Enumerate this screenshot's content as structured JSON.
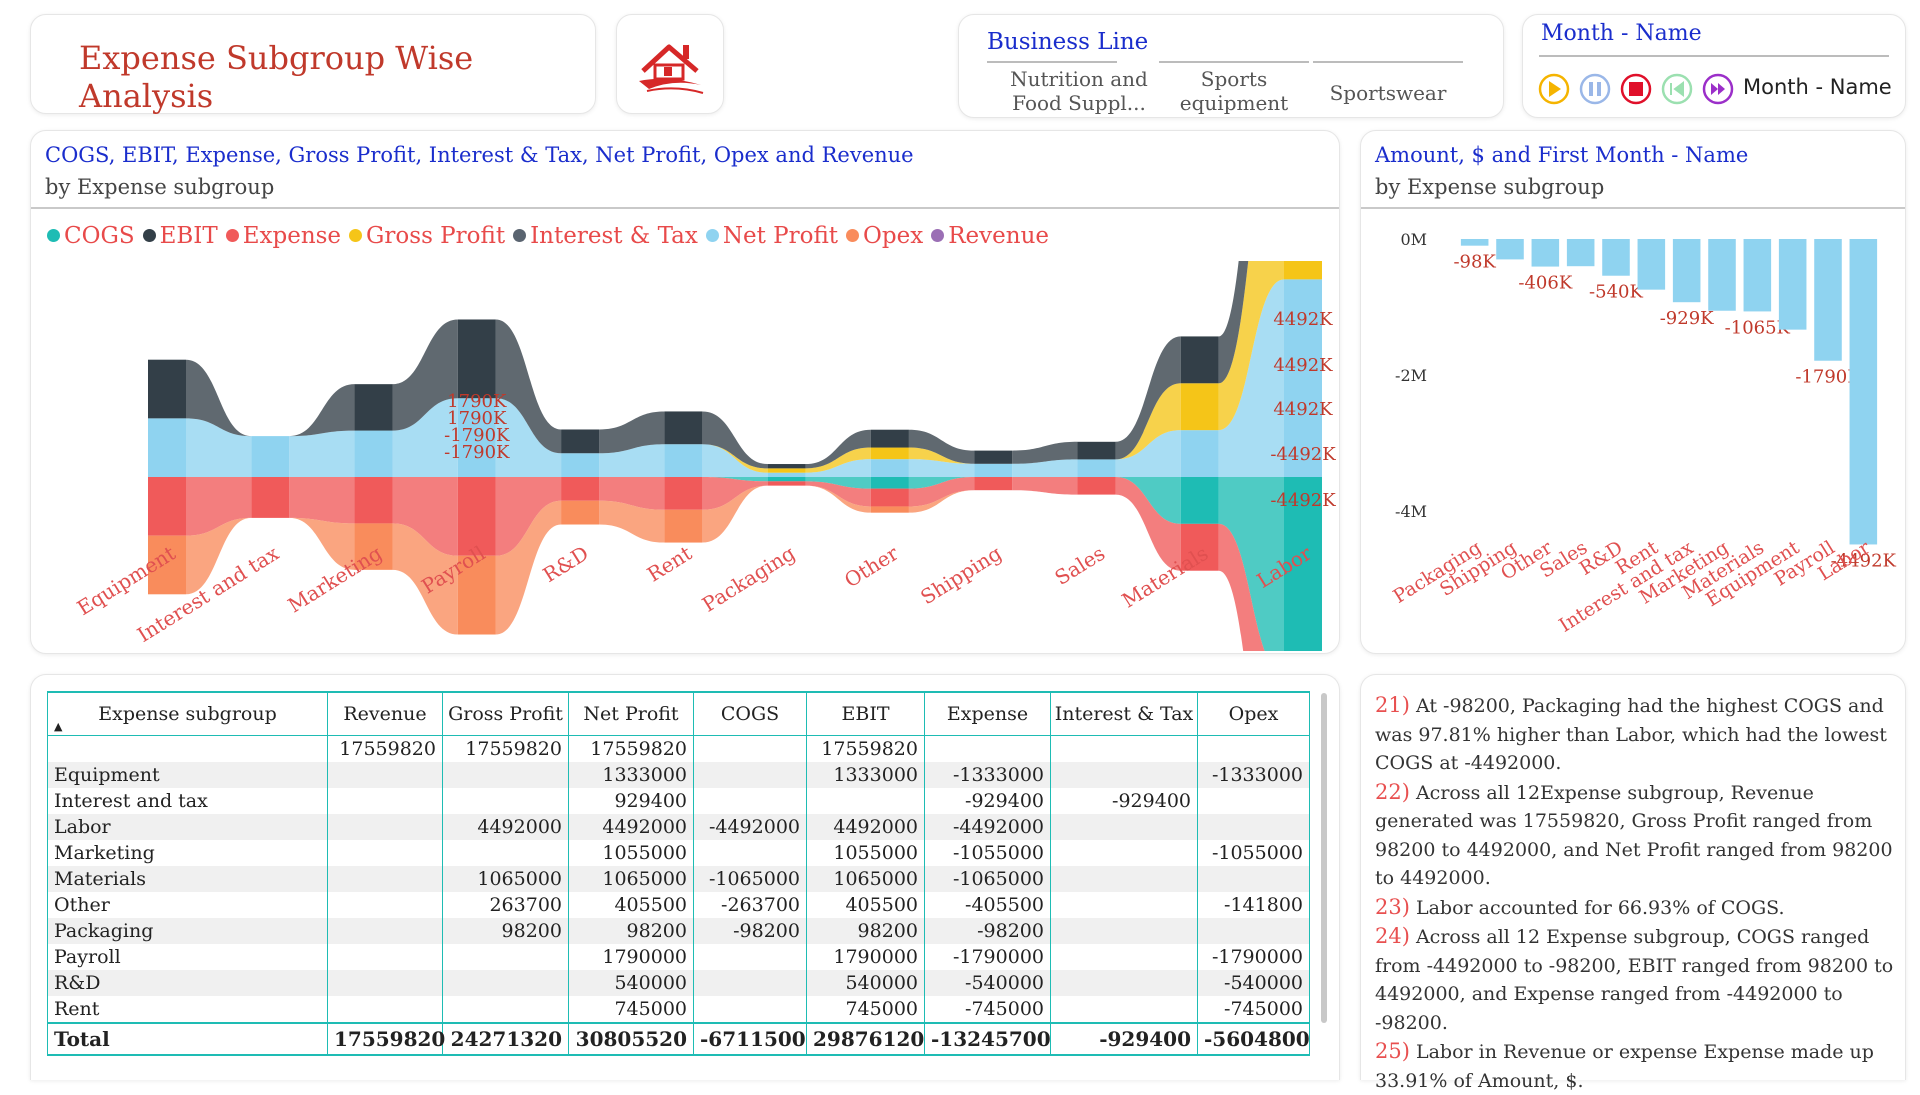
{
  "title": "Expense Subgroup Wise Analysis",
  "business_line": {
    "title": "Business Line",
    "items": [
      "Nutrition and\nFood Suppl...",
      "Sports\nequipment",
      "Sportswear"
    ]
  },
  "month": {
    "title": "Month - Name",
    "play_label": "Month - Name"
  },
  "ribbon": {
    "title": "COGS, EBIT, Expense, Gross Profit, Interest & Tax, Net Profit, Opex and Revenue",
    "subtitle": "by Expense subgroup",
    "legend": [
      {
        "name": "COGS",
        "color": "#1ebcb4"
      },
      {
        "name": "EBIT",
        "color": "#333f48"
      },
      {
        "name": "Expense",
        "color": "#f05a5a"
      },
      {
        "name": "Gross Profit",
        "color": "#f5c518"
      },
      {
        "name": "Interest & Tax",
        "color": "#5a6470"
      },
      {
        "name": "Net Profit",
        "color": "#8fd3f0"
      },
      {
        "name": "Opex",
        "color": "#f98c5c"
      },
      {
        "name": "Revenue",
        "color": "#9b6fb5"
      }
    ]
  },
  "chart_data": [
    {
      "type": "ribbon",
      "categories": [
        "Equipment",
        "Interest and tax",
        "Marketing",
        "Payroll",
        "R&D",
        "Rent",
        "Packaging",
        "Other",
        "Shipping",
        "Sales",
        "Materials",
        "Labor"
      ],
      "series": [
        {
          "name": "Net Profit",
          "values": [
            1333000,
            929400,
            1055000,
            1790000,
            540000,
            745000,
            98200,
            405500,
            300000,
            400000,
            1065000,
            4492000
          ]
        },
        {
          "name": "Gross Profit",
          "values": [
            0,
            0,
            0,
            0,
            0,
            0,
            98200,
            263700,
            0,
            0,
            1065000,
            4492000
          ]
        },
        {
          "name": "EBIT",
          "values": [
            1333000,
            0,
            1055000,
            1790000,
            540000,
            745000,
            98200,
            405500,
            300000,
            400000,
            1065000,
            4492000
          ]
        },
        {
          "name": "COGS",
          "values": [
            0,
            0,
            0,
            0,
            0,
            0,
            -98200,
            -263700,
            0,
            0,
            -1065000,
            -4492000
          ]
        },
        {
          "name": "Expense",
          "values": [
            -1333000,
            -929400,
            -1055000,
            -1790000,
            -540000,
            -745000,
            -98200,
            -405500,
            -300000,
            -400000,
            -1065000,
            -4492000
          ]
        },
        {
          "name": "Opex",
          "values": [
            -1333000,
            0,
            -1055000,
            -1790000,
            -540000,
            -745000,
            0,
            -141800,
            0,
            0,
            0,
            0
          ]
        }
      ],
      "data_labels": [
        {
          "category": "Payroll",
          "text": "1790K"
        },
        {
          "category": "Payroll",
          "text": "1790K"
        },
        {
          "category": "Payroll",
          "text": "-1790K"
        },
        {
          "category": "Payroll",
          "text": "-1790K"
        },
        {
          "category": "Labor",
          "text": "4492K"
        },
        {
          "category": "Labor",
          "text": "4492K"
        },
        {
          "category": "Labor",
          "text": "4492K"
        },
        {
          "category": "Labor",
          "text": "-4492K"
        },
        {
          "category": "Labor",
          "text": "-4492K"
        }
      ]
    },
    {
      "type": "bar",
      "title": "Amount, $ and First Month - Name",
      "subtitle": "by Expense subgroup",
      "categories": [
        "Packaging",
        "Shipping",
        "Other",
        "Sales",
        "R&D",
        "Rent",
        "Interest and tax",
        "Marketing",
        "Materials",
        "Equipment",
        "Payroll",
        "Labor"
      ],
      "values": [
        -98200,
        -300000,
        -405500,
        -400000,
        -540000,
        -745000,
        -929400,
        -1055000,
        -1065000,
        -1333000,
        -1790000,
        -4492000
      ],
      "data_labels": [
        "-98K",
        "",
        "-406K",
        "",
        "-540K",
        "",
        "-929K",
        "",
        "-1065K",
        "",
        "-1790K",
        "-4492K"
      ],
      "yticks": [
        "0M",
        "-2M",
        "-4M"
      ],
      "ylim": [
        -4600000,
        0
      ],
      "bar_color": "#8fd3f0"
    }
  ],
  "table": {
    "columns": [
      "Expense subgroup",
      "Revenue",
      "Gross Profit",
      "Net Profit",
      "COGS",
      "EBIT",
      "Expense",
      "Interest & Tax",
      "Opex"
    ],
    "rows": [
      [
        "",
        "17559820",
        "17559820",
        "17559820",
        "",
        "17559820",
        "",
        "",
        ""
      ],
      [
        "Equipment",
        "",
        "",
        "1333000",
        "",
        "1333000",
        "-1333000",
        "",
        "-1333000"
      ],
      [
        "Interest and tax",
        "",
        "",
        "929400",
        "",
        "",
        "-929400",
        "-929400",
        ""
      ],
      [
        "Labor",
        "",
        "4492000",
        "4492000",
        "-4492000",
        "4492000",
        "-4492000",
        "",
        ""
      ],
      [
        "Marketing",
        "",
        "",
        "1055000",
        "",
        "1055000",
        "-1055000",
        "",
        "-1055000"
      ],
      [
        "Materials",
        "",
        "1065000",
        "1065000",
        "-1065000",
        "1065000",
        "-1065000",
        "",
        ""
      ],
      [
        "Other",
        "",
        "263700",
        "405500",
        "-263700",
        "405500",
        "-405500",
        "",
        "-141800"
      ],
      [
        "Packaging",
        "",
        "98200",
        "98200",
        "-98200",
        "98200",
        "-98200",
        "",
        ""
      ],
      [
        "Payroll",
        "",
        "",
        "1790000",
        "",
        "1790000",
        "-1790000",
        "",
        "-1790000"
      ],
      [
        "R&D",
        "",
        "",
        "540000",
        "",
        "540000",
        "-540000",
        "",
        "-540000"
      ],
      [
        "Rent",
        "",
        "",
        "745000",
        "",
        "745000",
        "-745000",
        "",
        "-745000"
      ]
    ],
    "total": [
      "Total",
      "17559820",
      "24271320",
      "30805520",
      "-6711500",
      "29876120",
      "-13245700",
      "-929400",
      "-5604800"
    ]
  },
  "insights": [
    {
      "num": "21)",
      "text": "At -98200, Packaging had the highest COGS and was 97.81% higher than Labor, which had the lowest COGS at -4492000."
    },
    {
      "num": "22)",
      "text": "Across all 12Expense subgroup, Revenue generated was 17559820, Gross Profit ranged from 98200 to 4492000, and Net Profit ranged from 98200 to 4492000."
    },
    {
      "num": "23)",
      "text": "Labor accounted for 66.93% of COGS."
    },
    {
      "num": "24)",
      "text": "Across all 12 Expense subgroup, COGS ranged from -4492000 to -98200, EBIT ranged from 98200 to 4492000, and Expense ranged from -4492000 to -98200."
    },
    {
      "num": "25)",
      "text": "Labor in Revenue or expense Expense made up 33.91% of Amount, $."
    }
  ]
}
